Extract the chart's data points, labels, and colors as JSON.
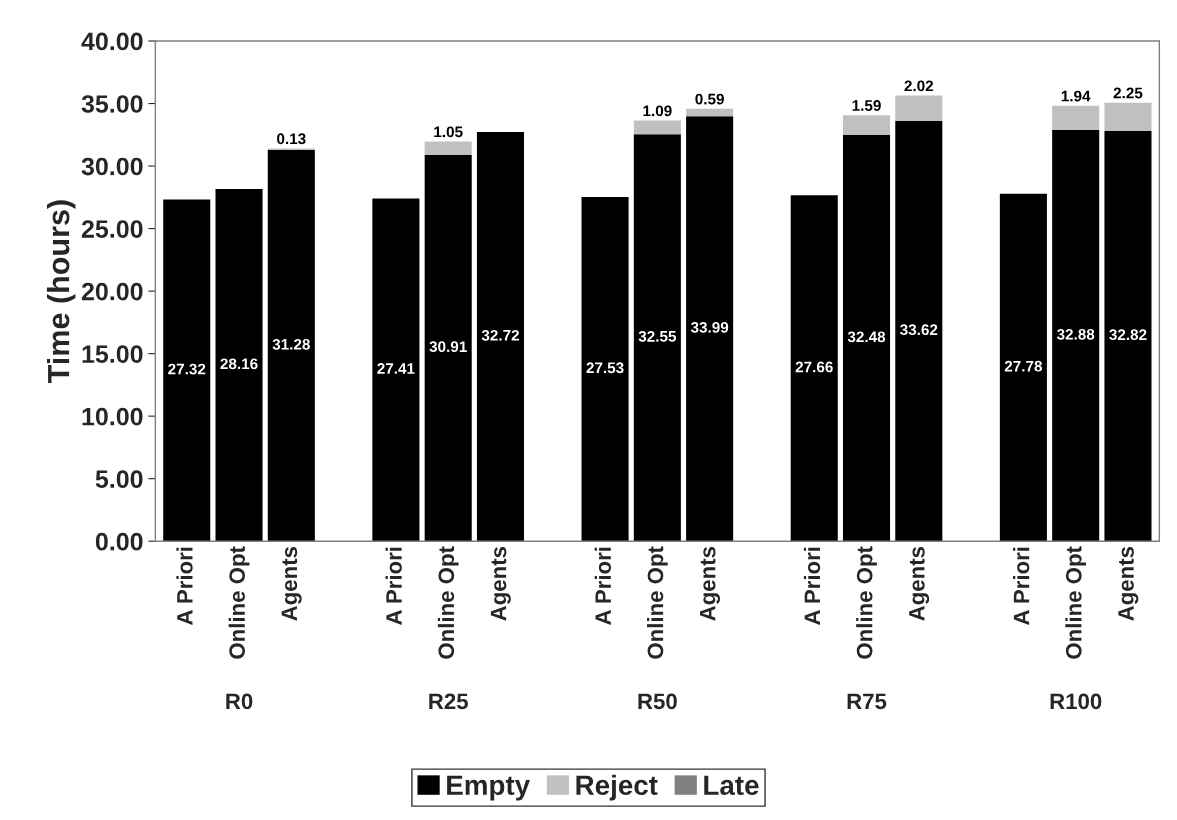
{
  "chart_data": {
    "type": "bar",
    "stacked": true,
    "ylabel": "Time (hours)",
    "categories": [
      "A Priori",
      "Online Opt",
      "Agents",
      null,
      "A Priori",
      "Online Opt",
      "Agents",
      null,
      "A Priori",
      "Online Opt",
      "Agents",
      null,
      "A Priori",
      "Online Opt",
      "Agents",
      null,
      "A Priori",
      "Online Opt",
      "Agents"
    ],
    "series": [
      {
        "name": "Empty",
        "color": "#000000",
        "values": [
          27.32,
          28.16,
          31.28,
          null,
          27.41,
          30.91,
          32.72,
          null,
          27.53,
          32.55,
          33.99,
          null,
          27.66,
          32.48,
          33.62,
          null,
          27.78,
          32.88,
          32.82
        ]
      },
      {
        "name": "Reject",
        "color": "#c0c0c0",
        "values": [
          null,
          null,
          0.13,
          null,
          null,
          1.05,
          null,
          null,
          null,
          1.09,
          0.59,
          null,
          null,
          1.59,
          2.02,
          null,
          null,
          1.94,
          2.25
        ]
      },
      {
        "name": "Late",
        "color": "#808080",
        "values": [
          null,
          null,
          null,
          null,
          null,
          null,
          null,
          null,
          null,
          null,
          null,
          null,
          null,
          null,
          null,
          null,
          null,
          null,
          null
        ]
      }
    ],
    "annotations": [
      "R0",
      "R25",
      "R50",
      "R75",
      "R100"
    ],
    "ylim": [
      0,
      40
    ],
    "yticks": [
      {
        "value": 0,
        "label": "0.00"
      },
      {
        "value": 5,
        "label": "5.00"
      },
      {
        "value": 10,
        "label": "10.00"
      },
      {
        "value": 15,
        "label": "15.00"
      },
      {
        "value": 20,
        "label": "20.00"
      },
      {
        "value": 25,
        "label": "25.00"
      },
      {
        "value": 30,
        "label": "30.00"
      },
      {
        "value": 35,
        "label": "35.00"
      },
      {
        "value": 40,
        "label": "40.00"
      }
    ],
    "data_labels": true,
    "grid": false,
    "legend": "bottom"
  }
}
